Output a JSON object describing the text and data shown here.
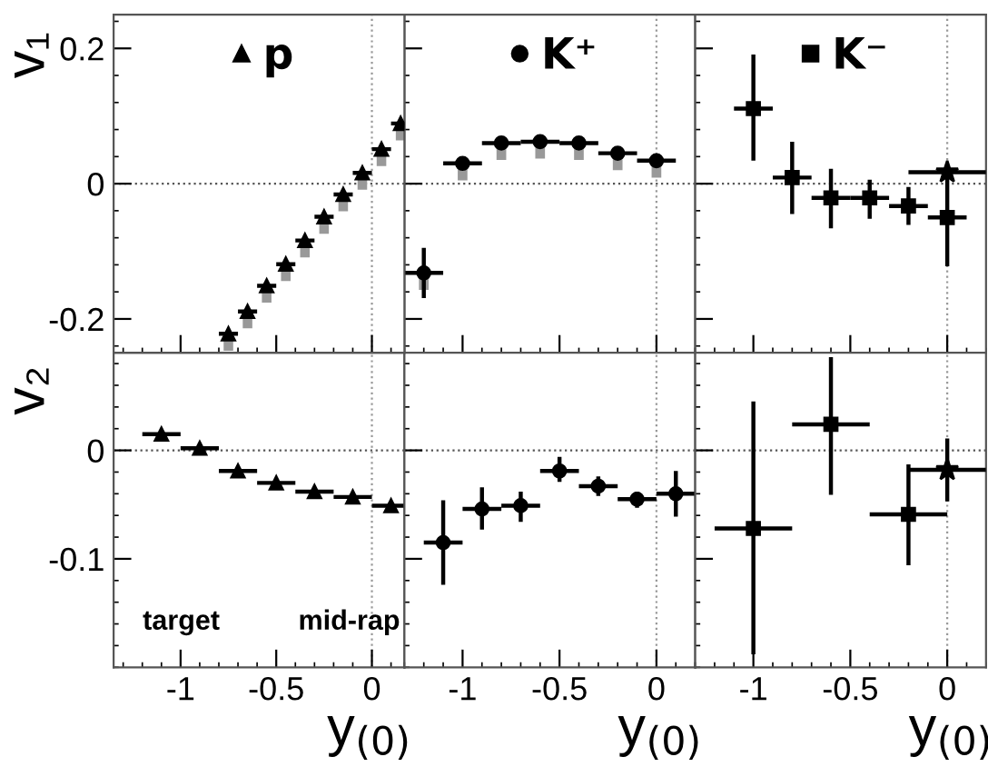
{
  "chart_data": [
    {
      "type": "scatter",
      "ylabel": "v₁",
      "xlim": [
        -1.35,
        0.17
      ],
      "ylim": [
        -0.25,
        0.25
      ],
      "xticks": [
        -1,
        -0.5,
        0
      ],
      "yticks": [
        -0.2,
        0,
        0.2
      ],
      "tick_labels": "y",
      "legend": "top",
      "marker": "triangle",
      "grid": false,
      "ref_lines": [
        {
          "axis": "y",
          "value": 0,
          "line_style": "dotted",
          "color": "#555555"
        },
        {
          "axis": "x",
          "value": 0,
          "line_style": "dotted",
          "color": "#999999"
        }
      ],
      "series": [
        {
          "type": "bar",
          "color": "#999999",
          "x": [
            -0.75,
            -0.65,
            -0.55,
            -0.45,
            -0.35,
            -0.25,
            -0.15,
            -0.05,
            0.05,
            0.15
          ],
          "base": [
            -0.222,
            -0.189,
            -0.151,
            -0.119,
            -0.084,
            -0.049,
            -0.016,
            0.016,
            0.051,
            0.089
          ],
          "values": [
            -0.025,
            -0.025,
            -0.025,
            -0.025,
            -0.025,
            -0.025,
            -0.025,
            -0.025,
            -0.025,
            -0.025
          ]
        },
        {
          "name": "p",
          "color": "#000000",
          "x": [
            -0.75,
            -0.65,
            -0.55,
            -0.45,
            -0.35,
            -0.25,
            -0.15,
            -0.05,
            0.05,
            0.15
          ],
          "values": [
            -0.222,
            -0.189,
            -0.151,
            -0.119,
            -0.084,
            -0.049,
            -0.016,
            0.016,
            0.051,
            0.089
          ],
          "xerrors": [
            0.05,
            0.05,
            0.05,
            0.05,
            0.05,
            0.05,
            0.05,
            0.05,
            0.05,
            0.05
          ]
        }
      ]
    },
    {
      "type": "scatter",
      "xlim": [
        -1.3,
        0.2
      ],
      "ylim": [
        -0.25,
        0.25
      ],
      "xticks": [
        -1,
        -0.5,
        0
      ],
      "yticks": [
        -0.2,
        0,
        0.2
      ],
      "tick_labels": false,
      "legend": "top",
      "marker": "circle",
      "grid": false,
      "ref_lines": [
        {
          "axis": "y",
          "value": 0,
          "line_style": "dotted",
          "color": "#555555"
        },
        {
          "axis": "x",
          "value": 0,
          "line_style": "dotted",
          "color": "#999999"
        }
      ],
      "series": [
        {
          "type": "bar",
          "color": "#999999",
          "x": [
            -1.2,
            -1.0,
            -0.8,
            -0.6,
            -0.4,
            -0.2,
            0.0
          ],
          "base": [
            -0.132,
            0.03,
            0.06,
            0.062,
            0.06,
            0.045,
            0.034
          ],
          "values": [
            -0.025,
            -0.025,
            -0.025,
            -0.025,
            -0.025,
            -0.025,
            -0.025
          ]
        },
        {
          "name": "K⁺",
          "color": "#000000",
          "x": [
            -1.2,
            -1.0,
            -0.8,
            -0.6,
            -0.4,
            -0.2,
            0.0
          ],
          "values": [
            -0.132,
            0.03,
            0.06,
            0.062,
            0.06,
            0.045,
            0.034
          ],
          "errors": [
            0.037,
            0.005,
            0.005,
            0.005,
            0.005,
            0.005,
            0.005
          ],
          "xerrors": [
            0.1,
            0.1,
            0.1,
            0.1,
            0.1,
            0.1,
            0.1
          ]
        }
      ]
    },
    {
      "type": "scatter",
      "xlim": [
        -1.3,
        0.2
      ],
      "ylim": [
        -0.25,
        0.25
      ],
      "xticks": [
        -1,
        -0.5,
        0
      ],
      "yticks": [
        -0.2,
        0,
        0.2
      ],
      "tick_labels": false,
      "legend": "top",
      "marker": "square",
      "grid": false,
      "ref_lines": [
        {
          "axis": "y",
          "value": 0,
          "line_style": "dotted",
          "color": "#555555"
        },
        {
          "axis": "x",
          "value": 0,
          "line_style": "dotted",
          "color": "#999999"
        }
      ],
      "series": [
        {
          "name": "K⁻",
          "color": "#000000",
          "x": [
            -1.0,
            -0.8,
            -0.6,
            -0.4,
            -0.2,
            0.0
          ],
          "values": [
            0.111,
            0.009,
            -0.021,
            -0.021,
            -0.033,
            -0.05
          ],
          "errors": [
            [
              0.034,
              0.191
            ],
            [
              -0.045,
              0.062
            ],
            [
              -0.066,
              0.022
            ],
            [
              -0.052,
              0.006
            ],
            [
              -0.061,
              -0.005
            ],
            [
              -0.122,
              0.017
            ]
          ],
          "xerrors": [
            0.1,
            0.1,
            0.1,
            0.1,
            0.1,
            0.1
          ]
        },
        {
          "color": "#000000",
          "marker": "star",
          "x": [
            0.0
          ],
          "values": [
            0.017
          ],
          "xerrors": [
            0.2
          ]
        }
      ]
    },
    {
      "type": "scatter",
      "ylabel": "v₂",
      "xlabel": "y$_{(0)}$",
      "xlim": [
        -1.35,
        0.17
      ],
      "ylim": [
        -0.2,
        0.09
      ],
      "xticks": [
        -1,
        -0.5,
        0
      ],
      "yticks": [
        -0.1,
        0
      ],
      "marker": "triangle",
      "grid": false,
      "ref_lines": [
        {
          "axis": "y",
          "value": 0,
          "line_style": "dotted",
          "color": "#555555"
        },
        {
          "axis": "x",
          "value": 0,
          "line_style": "dotted",
          "color": "#999999"
        }
      ],
      "annotations": [
        "target",
        "mid-rap"
      ],
      "series": [
        {
          "color": "#000000",
          "x": [
            -1.1,
            -0.9,
            -0.7,
            -0.5,
            -0.3,
            -0.1,
            0.1
          ],
          "values": [
            0.015,
            0.002,
            -0.019,
            -0.03,
            -0.038,
            -0.043,
            -0.051
          ],
          "xerrors": [
            0.1,
            0.1,
            0.1,
            0.1,
            0.1,
            0.1,
            0.1
          ]
        }
      ]
    },
    {
      "type": "scatter",
      "xlabel": "y$_{(0)}$",
      "xlim": [
        -1.3,
        0.2
      ],
      "ylim": [
        -0.2,
        0.09
      ],
      "xticks": [
        -1,
        -0.5,
        0
      ],
      "yticks": [
        -0.1,
        0
      ],
      "tick_labels": "x",
      "marker": "circle",
      "grid": false,
      "ref_lines": [
        {
          "axis": "y",
          "value": 0,
          "line_style": "dotted",
          "color": "#555555"
        },
        {
          "axis": "x",
          "value": 0,
          "line_style": "dotted",
          "color": "#999999"
        }
      ],
      "series": [
        {
          "color": "#000000",
          "x": [
            -1.1,
            -0.9,
            -0.7,
            -0.5,
            -0.3,
            -0.1,
            0.1
          ],
          "values": [
            -0.085,
            -0.054,
            -0.051,
            -0.019,
            -0.033,
            -0.045,
            -0.04
          ],
          "errors": [
            [
              -0.124,
              -0.046
            ],
            [
              -0.073,
              -0.034
            ],
            [
              -0.066,
              -0.038
            ],
            [
              -0.029,
              -0.006
            ],
            [
              -0.042,
              -0.024
            ],
            [
              -0.053,
              -0.038
            ],
            [
              -0.061,
              -0.019
            ]
          ],
          "xerrors": [
            0.1,
            0.1,
            0.1,
            0.1,
            0.1,
            0.1,
            0.1
          ]
        }
      ]
    },
    {
      "type": "scatter",
      "xlabel": "y$_{(0)}$",
      "xlim": [
        -1.3,
        0.2
      ],
      "ylim": [
        -0.2,
        0.09
      ],
      "xticks": [
        -1,
        -0.5,
        0
      ],
      "yticks": [
        -0.1,
        0
      ],
      "tick_labels": "x",
      "marker": "square",
      "grid": false,
      "ref_lines": [
        {
          "axis": "y",
          "value": 0,
          "line_style": "dotted",
          "color": "#555555"
        },
        {
          "axis": "x",
          "value": 0,
          "line_style": "dotted",
          "color": "#999999"
        }
      ],
      "series": [
        {
          "color": "#000000",
          "x": [
            -1.0,
            -0.6,
            -0.2
          ],
          "values": [
            -0.072,
            0.024,
            -0.059
          ],
          "errors": [
            [
              -0.188,
              0.045
            ],
            [
              -0.041,
              0.086
            ],
            [
              -0.106,
              -0.013
            ]
          ],
          "xerrors": [
            0.2,
            0.2,
            0.2
          ]
        },
        {
          "color": "#000000",
          "marker": "star",
          "x": [
            0.0
          ],
          "values": [
            -0.018
          ],
          "errors": [
            [
              -0.047,
              0.011
            ]
          ],
          "xerrors": [
            0.2
          ]
        }
      ]
    }
  ]
}
